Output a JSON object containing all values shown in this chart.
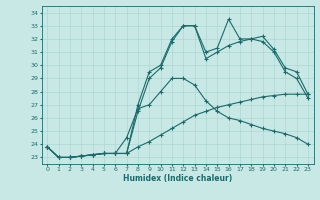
{
  "xlabel": "Humidex (Indice chaleur)",
  "bg_color": "#c8e8e5",
  "grid_color": "#a8d4d0",
  "line_color": "#1a6b6b",
  "xlim": [
    -0.5,
    23.5
  ],
  "ylim": [
    22.5,
    34.5
  ],
  "yticks": [
    23,
    24,
    25,
    26,
    27,
    28,
    29,
    30,
    31,
    32,
    33,
    34
  ],
  "xticks": [
    0,
    1,
    2,
    3,
    4,
    5,
    6,
    7,
    8,
    9,
    10,
    11,
    12,
    13,
    14,
    15,
    16,
    17,
    18,
    19,
    20,
    21,
    22,
    23
  ],
  "series": [
    [
      23.8,
      23.0,
      23.0,
      23.1,
      23.2,
      23.3,
      23.3,
      23.3,
      27.0,
      29.5,
      30.0,
      32.0,
      33.0,
      33.0,
      31.0,
      31.3,
      33.5,
      32.0,
      32.0,
      32.2,
      31.2,
      29.8,
      29.5,
      27.8
    ],
    [
      23.8,
      23.0,
      23.0,
      23.1,
      23.2,
      23.3,
      23.3,
      23.3,
      26.5,
      29.0,
      29.8,
      31.8,
      33.0,
      33.0,
      30.5,
      31.0,
      31.5,
      31.8,
      32.0,
      31.8,
      31.0,
      29.5,
      29.0,
      27.5
    ],
    [
      23.8,
      23.0,
      23.0,
      23.1,
      23.2,
      23.3,
      23.3,
      24.5,
      26.7,
      27.0,
      28.0,
      29.0,
      29.0,
      28.5,
      27.3,
      26.5,
      26.0,
      25.8,
      25.5,
      25.2,
      25.0,
      24.8,
      24.5,
      24.0
    ],
    [
      23.8,
      23.0,
      23.0,
      23.1,
      23.2,
      23.3,
      23.3,
      23.3,
      23.8,
      24.2,
      24.7,
      25.2,
      25.7,
      26.2,
      26.5,
      26.8,
      27.0,
      27.2,
      27.4,
      27.6,
      27.7,
      27.8,
      27.8,
      27.8
    ]
  ]
}
